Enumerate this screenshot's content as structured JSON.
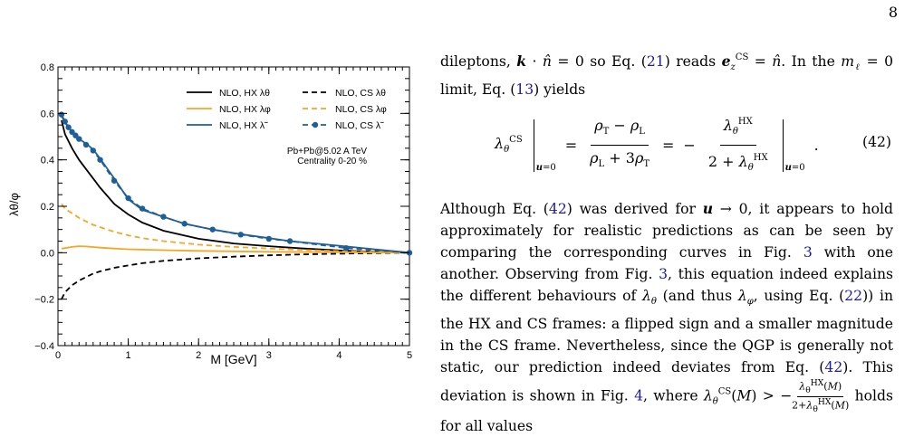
{
  "page_number": "8",
  "chart_data": {
    "type": "line",
    "xlabel": "M [GeV]",
    "ylabel": "λθ/φ",
    "xlim": [
      0,
      5
    ],
    "ylim": [
      -0.4,
      0.8
    ],
    "x_ticks": [
      "0",
      "1",
      "2",
      "3",
      "4",
      "5"
    ],
    "y_ticks": [
      "−0.4",
      "−0.2",
      "0.0",
      "0.2",
      "0.4",
      "0.6",
      "0.8"
    ],
    "annotation": [
      "Pb+Pb@5.02 A TeV",
      "Centrality 0-20 %"
    ],
    "legend_placement": "top-right",
    "series": [
      {
        "name": "NLO, HX λθ",
        "color": "#000000",
        "style": "solid",
        "markers": false,
        "x": [
          0.05,
          0.1,
          0.2,
          0.3,
          0.4,
          0.5,
          0.6,
          0.8,
          1.0,
          1.2,
          1.5,
          2.0,
          2.5,
          3.0,
          3.5,
          4.0,
          4.5,
          5.0
        ],
        "y": [
          0.57,
          0.51,
          0.45,
          0.4,
          0.36,
          0.32,
          0.28,
          0.21,
          0.165,
          0.13,
          0.095,
          0.06,
          0.04,
          0.028,
          0.018,
          0.01,
          0.004,
          0.0
        ]
      },
      {
        "name": "NLO, CS λθ",
        "color": "#000000",
        "style": "dashed",
        "markers": false,
        "x": [
          0.05,
          0.1,
          0.2,
          0.3,
          0.4,
          0.5,
          0.6,
          0.8,
          1.0,
          1.2,
          1.5,
          2.0,
          2.5,
          3.0,
          3.5,
          4.0,
          4.5,
          5.0
        ],
        "y": [
          -0.2,
          -0.17,
          -0.14,
          -0.12,
          -0.105,
          -0.09,
          -0.08,
          -0.065,
          -0.055,
          -0.045,
          -0.035,
          -0.024,
          -0.017,
          -0.011,
          -0.007,
          -0.004,
          -0.002,
          0.0
        ]
      },
      {
        "name": "NLO, HX λφ",
        "color": "#f5a623",
        "style": "solid",
        "markers": false,
        "x": [
          0.05,
          0.1,
          0.2,
          0.3,
          0.4,
          0.6,
          0.8,
          1.0,
          1.5,
          2.0,
          3.0,
          4.0,
          5.0
        ],
        "y": [
          0.018,
          0.02,
          0.025,
          0.028,
          0.027,
          0.022,
          0.018,
          0.015,
          0.011,
          0.008,
          0.004,
          0.002,
          0.0
        ]
      },
      {
        "name": "NLO, CS λφ",
        "color": "#f5a623",
        "style": "dashed",
        "markers": false,
        "x": [
          0.05,
          0.1,
          0.2,
          0.3,
          0.4,
          0.5,
          0.6,
          0.8,
          1.0,
          1.2,
          1.5,
          2.0,
          2.5,
          3.0,
          3.5,
          4.0,
          4.5,
          5.0
        ],
        "y": [
          0.21,
          0.19,
          0.17,
          0.15,
          0.135,
          0.12,
          0.11,
          0.09,
          0.075,
          0.063,
          0.05,
          0.035,
          0.025,
          0.018,
          0.012,
          0.007,
          0.003,
          0.0
        ]
      },
      {
        "name": "NLO, HX λ̃",
        "color": "#1f5f99",
        "style": "solid",
        "markers": false,
        "x": [
          0.05,
          0.1,
          0.2,
          0.3,
          0.4,
          0.5,
          0.6,
          0.8,
          1.0,
          1.2,
          1.5,
          1.8,
          2.2,
          2.6,
          3.0,
          3.3,
          4.0,
          4.5,
          5.0
        ],
        "y": [
          0.59,
          0.56,
          0.52,
          0.49,
          0.47,
          0.445,
          0.405,
          0.32,
          0.23,
          0.185,
          0.155,
          0.125,
          0.1,
          0.08,
          0.063,
          0.05,
          0.03,
          0.015,
          0.0
        ]
      },
      {
        "name": "NLO, CS λ̃",
        "color": "#1f5f99",
        "style": "dashed",
        "markers": true,
        "x": [
          0.05,
          0.1,
          0.15,
          0.2,
          0.25,
          0.3,
          0.4,
          0.5,
          0.6,
          0.8,
          1.0,
          1.2,
          1.5,
          1.8,
          2.2,
          2.6,
          3.0,
          3.3,
          4.1,
          5.0
        ],
        "y": [
          0.595,
          0.565,
          0.54,
          0.52,
          0.505,
          0.49,
          0.465,
          0.44,
          0.4,
          0.31,
          0.235,
          0.19,
          0.155,
          0.125,
          0.1,
          0.078,
          0.06,
          0.05,
          0.02,
          0.0
        ]
      }
    ]
  },
  "text": {
    "para1": {
      "a": "dileptons, ",
      "b": " so Eq. (",
      "ref1": "21",
      "c": ") reads ",
      "d": ". In the",
      "e": " limit, Eq. (",
      "ref2": "13",
      "f": ") yields"
    },
    "eq_number": "(42)",
    "para2": {
      "a": "Although Eq. (",
      "ref1": "42",
      "b": ") was derived for ",
      "c": ", it appears to hold approximately for realistic predictions as can be seen by comparing the corresponding curves in Fig. ",
      "ref2": "3",
      "d": " with one another. Observing from Fig. ",
      "ref3": "3",
      "e": ", this equation indeed explains the different behaviours of ",
      "f": " (and thus ",
      "g": ", using Eq. (",
      "ref4": "22",
      "h": ")) in the HX and CS frames: a flipped sign and a smaller magnitude in the CS frame. Nevertheless, since the QGP is generally not static, our prediction indeed deviates from Eq. (",
      "ref5": "42",
      "i": "). This deviation is shown in Fig. ",
      "ref6": "4",
      "j": ", where ",
      "k": " holds for all values"
    }
  }
}
